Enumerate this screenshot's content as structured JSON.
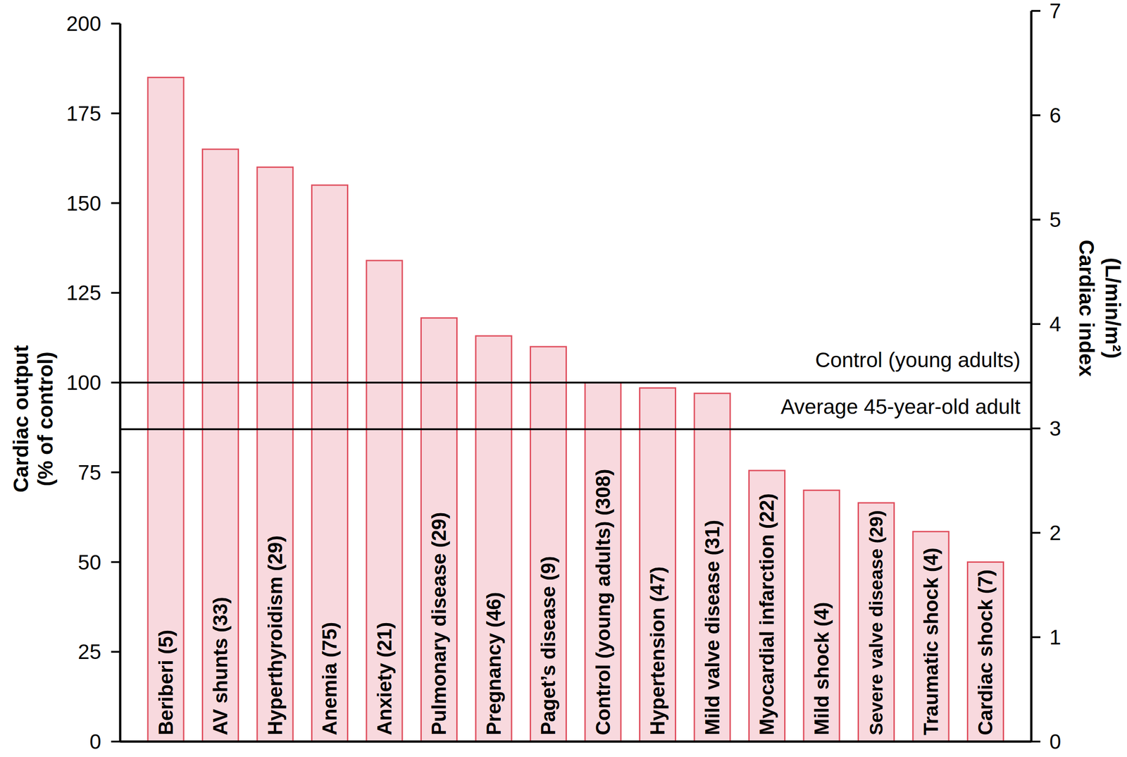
{
  "chart_data": {
    "type": "bar",
    "categories": [
      "Beriberi (5)",
      "AV shunts (33)",
      "Hyperthyroidism (29)",
      "Anemia (75)",
      "Anxiety (21)",
      "Pulmonary disease (29)",
      "Pregnancy (46)",
      "Paget’s disease (9)",
      "Control (young adults) (308)",
      "Hypertension (47)",
      "Mild valve disease (31)",
      "Myocardial infarction (22)",
      "Mild shock (4)",
      "Severe valve disease (29)",
      "Traumatic shock (4)",
      "Cardiac shock (7)"
    ],
    "values": [
      185,
      165,
      160,
      155,
      134,
      118,
      113,
      110,
      100,
      98.5,
      97,
      75.5,
      70,
      66.5,
      58.5,
      50
    ],
    "color": "#f8d9de",
    "ylabel": "Cardiac output (% of control)",
    "ylim": [
      0,
      200
    ],
    "yticks": [
      0,
      25,
      50,
      75,
      100,
      125,
      150,
      175,
      200
    ],
    "y2label": "Cardiac index (L/min/m²)",
    "y2lim": [
      0,
      7
    ],
    "y2ticks": [
      0,
      1,
      2,
      3,
      4,
      5,
      6,
      7
    ],
    "annotations": [
      {
        "text": "Control (young adults)",
        "y": 100
      },
      {
        "text": "Average 45-year-old adult",
        "y": 87
      }
    ],
    "grid": false
  }
}
